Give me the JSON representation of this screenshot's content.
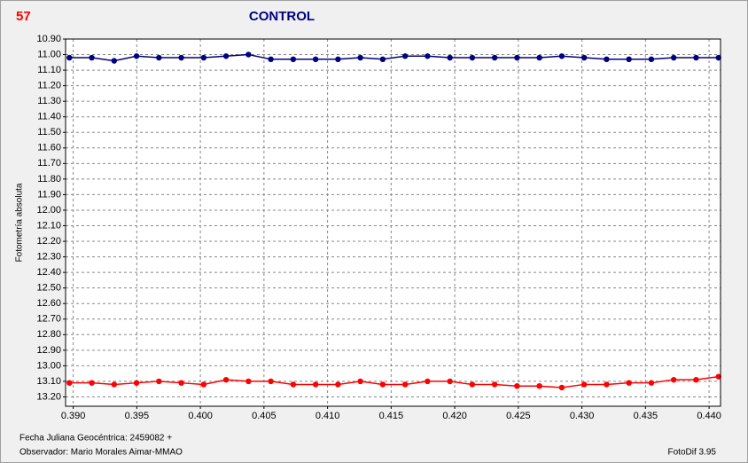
{
  "chart_data": {
    "type": "line",
    "corner_label": "57",
    "title": "CONTROL",
    "ylabel": "Fotometría absoluta",
    "footer_left_1": "Fecha Juliana Geocéntrica: 2459082 +",
    "footer_left_2": "Observador: Mario Morales Aimar-MMAO",
    "footer_right": "FotoDif 3.95",
    "y_inverted": true,
    "grid": true,
    "xlim": [
      0.3894,
      0.4409
    ],
    "ylim": [
      10.9,
      13.26
    ],
    "xticks": [
      {
        "value": 0.39,
        "label": "0.390"
      },
      {
        "value": 0.395,
        "label": "0.395"
      },
      {
        "value": 0.4,
        "label": "0.400"
      },
      {
        "value": 0.405,
        "label": "0.405"
      },
      {
        "value": 0.41,
        "label": "0.410"
      },
      {
        "value": 0.415,
        "label": "0.415"
      },
      {
        "value": 0.42,
        "label": "0.420"
      },
      {
        "value": 0.425,
        "label": "0.425"
      },
      {
        "value": 0.43,
        "label": "0.430"
      },
      {
        "value": 0.435,
        "label": "0.435"
      },
      {
        "value": 0.44,
        "label": "0.440"
      }
    ],
    "yticks": [
      {
        "value": 10.9,
        "label": "10.90"
      },
      {
        "value": 11.0,
        "label": "11.00"
      },
      {
        "value": 11.1,
        "label": "11.10"
      },
      {
        "value": 11.2,
        "label": "11.20"
      },
      {
        "value": 11.3,
        "label": "11.30"
      },
      {
        "value": 11.4,
        "label": "11.40"
      },
      {
        "value": 11.5,
        "label": "11.50"
      },
      {
        "value": 11.6,
        "label": "11.60"
      },
      {
        "value": 11.7,
        "label": "11.70"
      },
      {
        "value": 11.8,
        "label": "11.80"
      },
      {
        "value": 11.9,
        "label": "11.90"
      },
      {
        "value": 12.0,
        "label": "12.00"
      },
      {
        "value": 12.1,
        "label": "12.10"
      },
      {
        "value": 12.2,
        "label": "12.20"
      },
      {
        "value": 12.3,
        "label": "12.30"
      },
      {
        "value": 12.4,
        "label": "12.40"
      },
      {
        "value": 12.5,
        "label": "12.50"
      },
      {
        "value": 12.6,
        "label": "12.60"
      },
      {
        "value": 12.7,
        "label": "12.70"
      },
      {
        "value": 12.8,
        "label": "12.80"
      },
      {
        "value": 12.9,
        "label": "12.90"
      },
      {
        "value": 13.0,
        "label": "13.00"
      },
      {
        "value": 13.1,
        "label": "13.10"
      },
      {
        "value": 13.2,
        "label": "13.20"
      }
    ],
    "x": [
      0.3897,
      0.39146,
      0.39322,
      0.39498,
      0.39674,
      0.3985,
      0.40026,
      0.40202,
      0.40378,
      0.40554,
      0.4073,
      0.40906,
      0.41082,
      0.41258,
      0.41434,
      0.4161,
      0.41786,
      0.41962,
      0.42138,
      0.42314,
      0.4249,
      0.42666,
      0.42842,
      0.43018,
      0.43194,
      0.4337,
      0.43546,
      0.43722,
      0.43898,
      0.44074
    ],
    "series": [
      {
        "color": "#000080",
        "values": [
          11.02,
          11.02,
          11.04,
          11.01,
          11.02,
          11.02,
          11.02,
          11.01,
          11.0,
          11.03,
          11.03,
          11.03,
          11.03,
          11.02,
          11.03,
          11.01,
          11.01,
          11.02,
          11.02,
          11.02,
          11.02,
          11.02,
          11.01,
          11.02,
          11.03,
          11.03,
          11.03,
          11.02,
          11.02,
          11.02
        ]
      },
      {
        "color": "#ff0000",
        "values": [
          13.11,
          13.11,
          13.12,
          13.11,
          13.1,
          13.11,
          13.12,
          13.09,
          13.1,
          13.1,
          13.12,
          13.12,
          13.12,
          13.1,
          13.12,
          13.12,
          13.1,
          13.1,
          13.12,
          13.12,
          13.13,
          13.13,
          13.14,
          13.12,
          13.12,
          13.11,
          13.11,
          13.09,
          13.09,
          13.07
        ]
      }
    ]
  }
}
